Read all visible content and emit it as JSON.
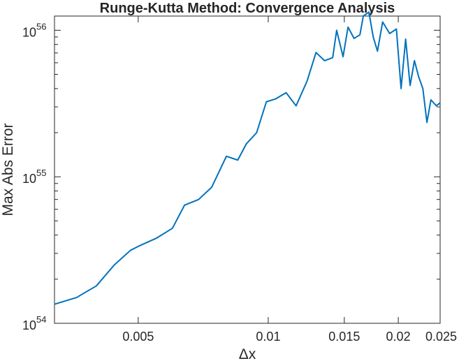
{
  "chart_data": {
    "type": "line",
    "title": "Runge-Kutta Method: Convergence Analysis",
    "xlabel": "Δx",
    "ylabel": "Max Abs Error",
    "xscale": "log",
    "yscale": "log",
    "xlim": [
      0.0032,
      0.025
    ],
    "ylim": [
      1e+54,
      1.25e+56
    ],
    "xticks": [
      {
        "value": 0.005,
        "label": "0.005"
      },
      {
        "value": 0.01,
        "label": "0.01"
      },
      {
        "value": 0.015,
        "label": "0.015"
      },
      {
        "value": 0.02,
        "label": "0.02"
      },
      {
        "value": 0.025,
        "label": "0.025"
      }
    ],
    "yticks": [
      {
        "value": 1e+54,
        "base": "10",
        "exp": "54"
      },
      {
        "value": 1e+55,
        "base": "10",
        "exp": "55"
      },
      {
        "value": 1e+56,
        "base": "10",
        "exp": "56"
      }
    ],
    "grid": false,
    "legend": "none",
    "color": "#0072BD",
    "series": [
      {
        "x": [
          0.0032,
          0.0036,
          0.004,
          0.0044,
          0.0048,
          0.005,
          0.0055,
          0.006,
          0.0064,
          0.0069,
          0.0074,
          0.008,
          0.0085,
          0.0089,
          0.0094,
          0.0099,
          0.0104,
          0.011,
          0.0116,
          0.0123,
          0.0129,
          0.0135,
          0.0141,
          0.0144,
          0.0149,
          0.0153,
          0.0158,
          0.0163,
          0.0166,
          0.0171,
          0.0175,
          0.0179,
          0.0184,
          0.0191,
          0.0198,
          0.0203,
          0.0208,
          0.0213,
          0.0218,
          0.0223,
          0.0228,
          0.0233,
          0.0238,
          0.0245,
          0.025
        ],
        "y": [
          1.35e+54,
          1.5e+54,
          1.8e+54,
          2.5e+54,
          3.15e+54,
          3.35e+54,
          3.8e+54,
          4.45e+54,
          6.4e+54,
          7e+54,
          8.5e+54,
          1.38e+55,
          1.3e+55,
          1.68e+55,
          2e+55,
          3.25e+55,
          3.4e+55,
          3.75e+55,
          3.05e+55,
          4.5e+55,
          7.05e+55,
          6.2e+55,
          6.5e+55,
          1e+56,
          6.6e+55,
          1.05e+56,
          8.8e+55,
          9.3e+55,
          1.25e+56,
          1.33e+56,
          9e+55,
          7.2e+55,
          1.14e+56,
          9.5e+55,
          1.02e+56,
          4e+55,
          8.7e+55,
          4.2e+55,
          6.2e+55,
          4.8e+55,
          4e+55,
          2.35e+55,
          3.35e+55,
          3.05e+55,
          3.2e+55
        ]
      }
    ]
  }
}
